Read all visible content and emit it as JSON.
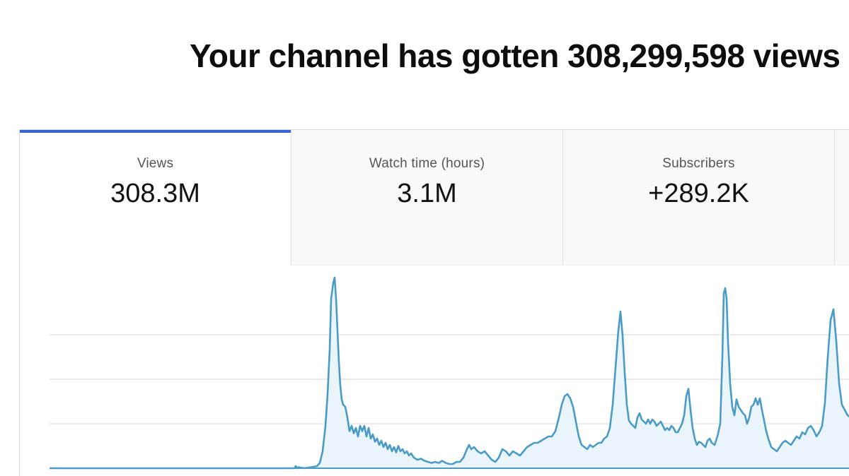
{
  "headline": "Your channel has gotten 308,299,598 views",
  "tabs": [
    {
      "label": "Views",
      "value": "308.3M",
      "selected": true
    },
    {
      "label": "Watch time (hours)",
      "value": "3.1M",
      "selected": false
    },
    {
      "label": "Subscribers",
      "value": "+289.2K",
      "selected": false
    }
  ],
  "colors": {
    "accent": "#3564d1",
    "line": "#4a9bc6",
    "area_fill": "#e9f4fb",
    "gridline": "#e3e3e3",
    "baseline": "#4a9bc6"
  },
  "chart_data": {
    "type": "area",
    "series": [
      {
        "points": [
          [
            0,
            0
          ],
          [
            40,
            0
          ],
          [
            80,
            0
          ],
          [
            120,
            0
          ],
          [
            160,
            0
          ],
          [
            200,
            0
          ],
          [
            240,
            0
          ],
          [
            280,
            0
          ],
          [
            320,
            0
          ],
          [
            346,
            0
          ],
          [
            348,
            2
          ],
          [
            350,
            0
          ],
          [
            352,
            1
          ],
          [
            360,
            0
          ],
          [
            370,
            1
          ],
          [
            378,
            2
          ],
          [
            382,
            5
          ],
          [
            386,
            16
          ],
          [
            390,
            40
          ],
          [
            393,
            70
          ],
          [
            396,
            112
          ],
          [
            398,
            160
          ],
          [
            401,
            175
          ],
          [
            403,
            180
          ],
          [
            405,
            160
          ],
          [
            407,
            130
          ],
          [
            409,
            100
          ],
          [
            411,
            78
          ],
          [
            413,
            65
          ],
          [
            415,
            60
          ],
          [
            418,
            58
          ],
          [
            421,
            48
          ],
          [
            424,
            35
          ],
          [
            427,
            40
          ],
          [
            430,
            33
          ],
          [
            433,
            38
          ],
          [
            436,
            30
          ],
          [
            439,
            40
          ],
          [
            442,
            35
          ],
          [
            445,
            40
          ],
          [
            448,
            30
          ],
          [
            451,
            38
          ],
          [
            454,
            28
          ],
          [
            457,
            32
          ],
          [
            460,
            25
          ],
          [
            463,
            28
          ],
          [
            466,
            22
          ],
          [
            469,
            26
          ],
          [
            472,
            20
          ],
          [
            475,
            24
          ],
          [
            478,
            18
          ],
          [
            481,
            22
          ],
          [
            484,
            16
          ],
          [
            487,
            20
          ],
          [
            490,
            15
          ],
          [
            493,
            21
          ],
          [
            496,
            16
          ],
          [
            499,
            18
          ],
          [
            502,
            14
          ],
          [
            505,
            16
          ],
          [
            508,
            12
          ],
          [
            511,
            14
          ],
          [
            515,
            10
          ],
          [
            520,
            8
          ],
          [
            525,
            9
          ],
          [
            530,
            7
          ],
          [
            535,
            6
          ],
          [
            540,
            5
          ],
          [
            545,
            6
          ],
          [
            550,
            5
          ],
          [
            555,
            7
          ],
          [
            560,
            5
          ],
          [
            565,
            4
          ],
          [
            570,
            4
          ],
          [
            575,
            6
          ],
          [
            580,
            6
          ],
          [
            585,
            10
          ],
          [
            590,
            18
          ],
          [
            593,
            22
          ],
          [
            596,
            18
          ],
          [
            600,
            20
          ],
          [
            605,
            16
          ],
          [
            610,
            14
          ],
          [
            615,
            16
          ],
          [
            620,
            12
          ],
          [
            625,
            8
          ],
          [
            630,
            6
          ],
          [
            635,
            10
          ],
          [
            640,
            18
          ],
          [
            645,
            16
          ],
          [
            650,
            12
          ],
          [
            655,
            16
          ],
          [
            660,
            14
          ],
          [
            665,
            12
          ],
          [
            670,
            16
          ],
          [
            675,
            20
          ],
          [
            680,
            22
          ],
          [
            685,
            24
          ],
          [
            690,
            24
          ],
          [
            695,
            26
          ],
          [
            700,
            28
          ],
          [
            705,
            30
          ],
          [
            710,
            30
          ],
          [
            715,
            35
          ],
          [
            720,
            48
          ],
          [
            724,
            60
          ],
          [
            728,
            68
          ],
          [
            732,
            70
          ],
          [
            736,
            66
          ],
          [
            740,
            58
          ],
          [
            744,
            44
          ],
          [
            748,
            30
          ],
          [
            752,
            22
          ],
          [
            756,
            20
          ],
          [
            760,
            18
          ],
          [
            764,
            22
          ],
          [
            768,
            20
          ],
          [
            772,
            22
          ],
          [
            776,
            24
          ],
          [
            780,
            24
          ],
          [
            784,
            28
          ],
          [
            788,
            30
          ],
          [
            792,
            38
          ],
          [
            796,
            60
          ],
          [
            800,
            95
          ],
          [
            804,
            130
          ],
          [
            807,
            148
          ],
          [
            810,
            125
          ],
          [
            813,
            90
          ],
          [
            816,
            60
          ],
          [
            819,
            45
          ],
          [
            822,
            42
          ],
          [
            825,
            40
          ],
          [
            828,
            38
          ],
          [
            831,
            48
          ],
          [
            834,
            52
          ],
          [
            837,
            46
          ],
          [
            840,
            44
          ],
          [
            843,
            42
          ],
          [
            846,
            46
          ],
          [
            849,
            42
          ],
          [
            852,
            46
          ],
          [
            855,
            44
          ],
          [
            858,
            40
          ],
          [
            861,
            42
          ],
          [
            864,
            44
          ],
          [
            867,
            40
          ],
          [
            870,
            36
          ],
          [
            873,
            38
          ],
          [
            876,
            36
          ],
          [
            879,
            40
          ],
          [
            882,
            38
          ],
          [
            885,
            34
          ],
          [
            888,
            34
          ],
          [
            891,
            38
          ],
          [
            894,
            42
          ],
          [
            897,
            50
          ],
          [
            900,
            68
          ],
          [
            903,
            75
          ],
          [
            906,
            55
          ],
          [
            909,
            38
          ],
          [
            912,
            28
          ],
          [
            915,
            22
          ],
          [
            918,
            25
          ],
          [
            921,
            24
          ],
          [
            924,
            22
          ],
          [
            927,
            20
          ],
          [
            930,
            26
          ],
          [
            933,
            28
          ],
          [
            936,
            24
          ],
          [
            940,
            22
          ],
          [
            944,
            30
          ],
          [
            948,
            42
          ],
          [
            951,
            105
          ],
          [
            953,
            165
          ],
          [
            955,
            170
          ],
          [
            957,
            160
          ],
          [
            959,
            120
          ],
          [
            962,
            80
          ],
          [
            965,
            58
          ],
          [
            968,
            50
          ],
          [
            971,
            65
          ],
          [
            974,
            58
          ],
          [
            977,
            55
          ],
          [
            980,
            52
          ],
          [
            983,
            50
          ],
          [
            986,
            42
          ],
          [
            989,
            48
          ],
          [
            992,
            58
          ],
          [
            995,
            60
          ],
          [
            998,
            66
          ],
          [
            1001,
            60
          ],
          [
            1004,
            66
          ],
          [
            1007,
            55
          ],
          [
            1010,
            45
          ],
          [
            1013,
            35
          ],
          [
            1016,
            28
          ],
          [
            1020,
            20
          ],
          [
            1024,
            18
          ],
          [
            1028,
            16
          ],
          [
            1032,
            20
          ],
          [
            1036,
            24
          ],
          [
            1040,
            26
          ],
          [
            1044,
            24
          ],
          [
            1048,
            22
          ],
          [
            1052,
            26
          ],
          [
            1056,
            30
          ],
          [
            1060,
            28
          ],
          [
            1064,
            34
          ],
          [
            1068,
            32
          ],
          [
            1072,
            38
          ],
          [
            1076,
            40
          ],
          [
            1080,
            36
          ],
          [
            1084,
            30
          ],
          [
            1088,
            34
          ],
          [
            1092,
            40
          ],
          [
            1096,
            62
          ],
          [
            1100,
            105
          ],
          [
            1104,
            140
          ],
          [
            1108,
            150
          ],
          [
            1112,
            120
          ],
          [
            1116,
            80
          ],
          [
            1120,
            60
          ],
          [
            1124,
            55
          ],
          [
            1128,
            50
          ],
          [
            1132,
            48
          ],
          [
            1136,
            45
          ],
          [
            1140,
            42
          ]
        ]
      }
    ],
    "ylim": [
      0,
      190
    ],
    "xlim": [
      0,
      1140
    ],
    "grid": true,
    "gridline_count": 3
  }
}
